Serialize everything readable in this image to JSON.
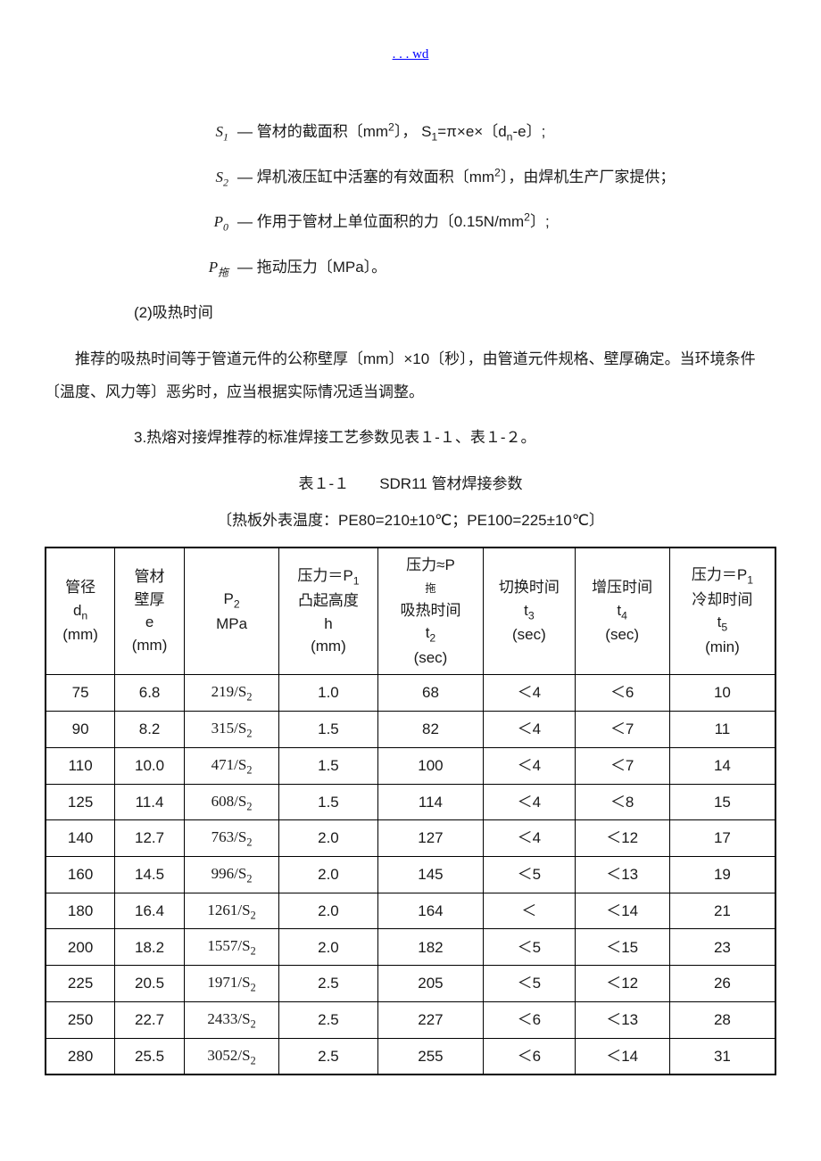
{
  "header_link": ". . . wd",
  "defs": [
    {
      "sym": "S<sub>1</sub>",
      "txt": "— 管材的截面积〔mm<span class='sup'>2</span>〕， S<span class='sub'>1</span>=π×e×〔d<span class='sub'>n</span>-e〕;"
    },
    {
      "sym": "S<sub>2</sub>",
      "txt": "— 焊机液压缸中活塞的有效面积〔mm<span class='sup'>2</span>〕，由焊机生产厂家提供；"
    },
    {
      "sym": "P<sub>0</sub>",
      "txt": "— 作用于管材上单位面积的力〔0.15N/mm<span class='sup'>2</span>〕;"
    },
    {
      "sym": "P<sub>拖</sub>",
      "txt": "— 拖动压力〔MPa〕。"
    }
  ],
  "subhead": "(2)吸热时间",
  "para1": "推荐的吸热时间等于管道元件的公称壁厚〔mm〕×10〔秒〕，由管道元件规格、壁厚确定。当环境条件〔温度、风力等〕恶劣时，应当根据实际情况适当调整。",
  "para2": "3.热熔对接焊推荐的标准焊接工艺参数见表１-１、表１-２。",
  "table_title": "表１-１　　SDR11 管材焊接参数",
  "table_sub": "〔热板外表温度：PE80=210±10℃；PE100=225±10℃〕",
  "headers": [
    "管径<br>d<span class='sub'>n</span><br>(mm)",
    "管材<br>壁厚<br>e<br>(mm)",
    "P<span class='sub'>2</span><br>MPa",
    "压力＝P<span class='sub'>1</span><br>凸起高度<br>h<br>(mm)",
    "压力≈P<br><span style='font-size:0.72em'>拖</span><br>吸热时间<br>t<span class='sub'>2</span><br>(sec)",
    "切换时间<br>t<span class='sub'>3</span><br>(sec)",
    "增压时间<br>t<span class='sub'>4</span><br>(sec)",
    "压力＝P<span class='sub'>1</span><br>冷却时间<br>t<span class='sub'>5</span><br>(min)"
  ],
  "rows": [
    [
      "75",
      "6.8",
      "219/S",
      "1.0",
      "68",
      "＜4",
      "＜6",
      "10"
    ],
    [
      "90",
      "8.2",
      "315/S",
      "1.5",
      "82",
      "＜4",
      "＜7",
      "11"
    ],
    [
      "110",
      "10.0",
      "471/S",
      "1.5",
      "100",
      "＜4",
      "＜7",
      "14"
    ],
    [
      "125",
      "11.4",
      "608/S",
      "1.5",
      "114",
      "＜4",
      "＜8",
      "15"
    ],
    [
      "140",
      "12.7",
      "763/S",
      "2.0",
      "127",
      "＜4",
      "＜12",
      "17"
    ],
    [
      "160",
      "14.5",
      "996/S",
      "2.0",
      "145",
      "＜5",
      "＜13",
      "19"
    ],
    [
      "180",
      "16.4",
      "1261/S",
      "2.0",
      "164",
      "＜",
      "＜14",
      "21"
    ],
    [
      "200",
      "18.2",
      "1557/S",
      "2.0",
      "182",
      "＜5",
      "＜15",
      "23"
    ],
    [
      "225",
      "20.5",
      "1971/S",
      "2.5",
      "205",
      "＜5",
      "＜12",
      "26"
    ],
    [
      "250",
      "22.7",
      "2433/S",
      "2.5",
      "227",
      "＜6",
      "＜13",
      "28"
    ],
    [
      "280",
      "25.5",
      "3052/S",
      "2.5",
      "255",
      "＜6",
      "＜14",
      "31"
    ]
  ]
}
